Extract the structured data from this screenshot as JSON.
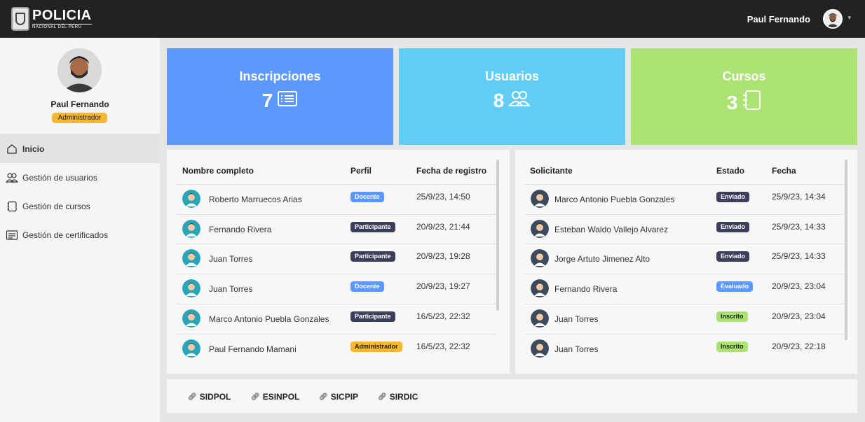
{
  "header": {
    "logo_title": "POLICIA",
    "logo_subtitle": "NACIONAL DEL PERU",
    "user_name": "Paul Fernando",
    "caret": "▾"
  },
  "sidebar": {
    "profile_name": "Paul Fernando",
    "profile_role": "Administrador",
    "items": [
      {
        "label": "Inicio",
        "icon": "home-icon"
      },
      {
        "label": "Gestión de usuarios",
        "icon": "users-icon"
      },
      {
        "label": "Gestión de cursos",
        "icon": "notebook-icon"
      },
      {
        "label": "Gestión de certificados",
        "icon": "certificate-icon"
      }
    ]
  },
  "cards": [
    {
      "title": "Inscripciones",
      "value": "7",
      "icon": "list-icon",
      "color": "#5c99ff"
    },
    {
      "title": "Usuarios",
      "value": "8",
      "icon": "users-icon",
      "color": "#61cdf5"
    },
    {
      "title": "Cursos",
      "value": "3",
      "icon": "notebook-icon",
      "color": "#abe373"
    }
  ],
  "users_table": {
    "headers": [
      "Nombre completo",
      "Perfil",
      "Fecha de registro"
    ],
    "rows": [
      {
        "name": "Roberto Marruecos Arias",
        "profile": "Docente",
        "date": "25/9/23, 14:50"
      },
      {
        "name": "Fernando Rivera",
        "profile": "Participante",
        "date": "20/9/23, 21:44"
      },
      {
        "name": "Juan Torres",
        "profile": "Participante",
        "date": "20/9/23, 19:28"
      },
      {
        "name": "Juan Torres",
        "profile": "Docente",
        "date": "20/9/23, 19:27"
      },
      {
        "name": "Marco Antonio Puebla Gonzales",
        "profile": "Participante",
        "date": "16/5/23, 22:32"
      },
      {
        "name": "Paul Fernando Mamani",
        "profile": "Administrador",
        "date": "16/5/23, 22:32"
      }
    ]
  },
  "requests_table": {
    "headers": [
      "Solicitante",
      "Estado",
      "Fecha"
    ],
    "rows": [
      {
        "name": "Marco Antonio Puebla Gonzales",
        "status": "Enviado",
        "date": "25/9/23, 14:34"
      },
      {
        "name": "Esteban Waldo Vallejo Alvarez",
        "status": "Enviado",
        "date": "25/9/23, 14:33"
      },
      {
        "name": "Jorge Artuto Jimenez Alto",
        "status": "Enviado",
        "date": "25/9/23, 14:33"
      },
      {
        "name": "Fernando Rivera",
        "status": "Evaluado",
        "date": "20/9/23, 23:04"
      },
      {
        "name": "Juan Torres",
        "status": "Inscrito",
        "date": "20/9/23, 23:04"
      },
      {
        "name": "Juan Torres",
        "status": "Inscrito",
        "date": "20/9/23, 22:18"
      }
    ]
  },
  "footer_links": [
    "SIDPOL",
    "ESINPOL",
    "SICPIP",
    "SIRDIC"
  ]
}
